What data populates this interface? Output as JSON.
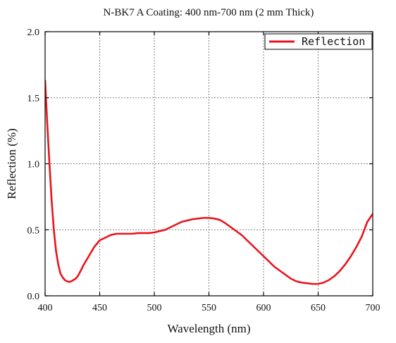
{
  "chart_data": {
    "type": "line",
    "title": "N-BK7 A Coating: 400 nm-700 nm (2 mm Thick)",
    "xlabel": "Wavelength (nm)",
    "ylabel": "Reflection (%)",
    "xlim": [
      400,
      700
    ],
    "ylim": [
      0.0,
      2.0
    ],
    "xticks": [
      400,
      450,
      500,
      550,
      600,
      650,
      700
    ],
    "yticks": [
      0.0,
      0.5,
      1.0,
      1.5,
      2.0
    ],
    "xtick_labels": [
      "400",
      "450",
      "500",
      "550",
      "600",
      "650",
      "700"
    ],
    "ytick_labels": [
      "0.0",
      "0.5",
      "1.0",
      "1.5",
      "2.0"
    ],
    "grid": true,
    "legend_position": "top-right",
    "series": [
      {
        "name": "Reflection",
        "color": "#e8141c",
        "x": [
          400,
          402,
          404,
          406,
          408,
          410,
          412,
          414,
          416,
          418,
          420,
          422,
          424,
          426,
          428,
          430,
          432,
          435,
          440,
          445,
          450,
          455,
          460,
          465,
          470,
          475,
          480,
          485,
          490,
          495,
          500,
          505,
          510,
          515,
          520,
          525,
          530,
          535,
          540,
          545,
          550,
          555,
          560,
          565,
          570,
          575,
          580,
          585,
          590,
          595,
          600,
          605,
          610,
          615,
          620,
          625,
          630,
          635,
          640,
          645,
          650,
          655,
          660,
          665,
          670,
          675,
          680,
          685,
          690,
          695,
          700
        ],
        "y": [
          1.63,
          1.3,
          1.0,
          0.72,
          0.5,
          0.34,
          0.24,
          0.17,
          0.14,
          0.12,
          0.11,
          0.105,
          0.11,
          0.12,
          0.13,
          0.15,
          0.18,
          0.23,
          0.3,
          0.37,
          0.42,
          0.44,
          0.46,
          0.47,
          0.47,
          0.47,
          0.47,
          0.475,
          0.475,
          0.475,
          0.48,
          0.49,
          0.5,
          0.52,
          0.54,
          0.56,
          0.57,
          0.58,
          0.585,
          0.59,
          0.59,
          0.585,
          0.575,
          0.55,
          0.52,
          0.49,
          0.46,
          0.42,
          0.38,
          0.34,
          0.3,
          0.26,
          0.22,
          0.19,
          0.16,
          0.13,
          0.11,
          0.1,
          0.095,
          0.09,
          0.09,
          0.1,
          0.12,
          0.15,
          0.19,
          0.24,
          0.3,
          0.37,
          0.45,
          0.56,
          0.62
        ]
      }
    ]
  }
}
